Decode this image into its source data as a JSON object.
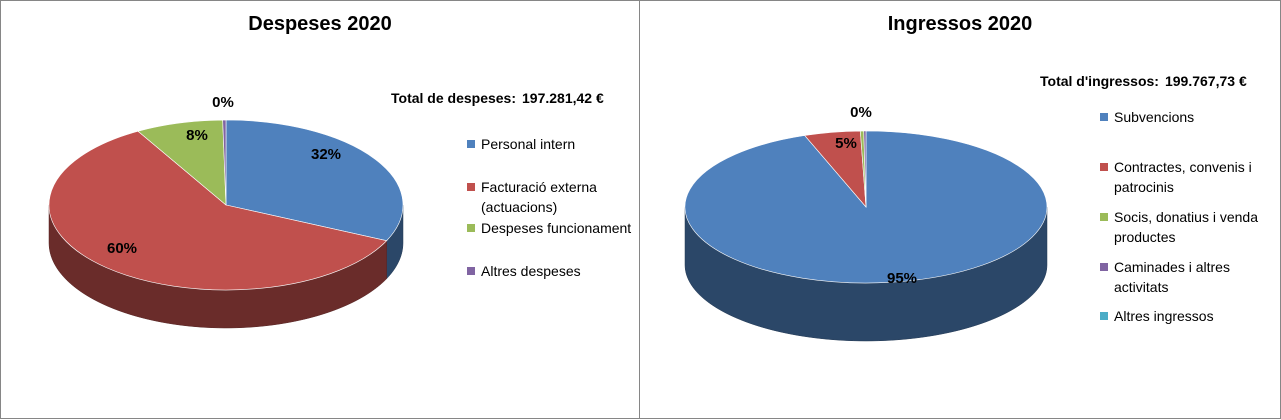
{
  "charts": [
    {
      "title": "Despeses 2020",
      "total_label": "Total de despeses:",
      "total_value": "197.281,42 €"
    },
    {
      "title": "Ingressos 2020",
      "total_label": "Total d'ingressos:",
      "total_value": "199.767,73 €"
    }
  ],
  "chart_data": [
    {
      "type": "pie",
      "title": "Despeses 2020",
      "three_d": true,
      "legend_position": "right",
      "categories": [
        "Personal intern",
        "Facturació externa (actuacions)",
        "Despeses funcionament",
        "Altres despeses"
      ],
      "values": [
        32,
        60,
        8,
        0.3
      ],
      "data_labels": [
        "32%",
        "60%",
        "8%",
        "0%"
      ],
      "colors": [
        "#4F81BD",
        "#C0504D",
        "#9BBB59",
        "#8064A2"
      ]
    },
    {
      "type": "pie",
      "title": "Ingressos 2020",
      "three_d": true,
      "legend_position": "right",
      "categories": [
        "Subvencions",
        "Contractes, convenis i patrocinis",
        "Socis, donatius i venda productes",
        "Caminades i altres activitats",
        "Altres ingressos"
      ],
      "values": [
        94.5,
        5,
        0.3,
        0.2,
        0
      ],
      "data_labels": [
        "95%",
        "5%",
        "0%",
        "",
        ""
      ],
      "colors": [
        "#4F81BD",
        "#C0504D",
        "#9BBB59",
        "#8064A2",
        "#4BACC6"
      ]
    }
  ]
}
